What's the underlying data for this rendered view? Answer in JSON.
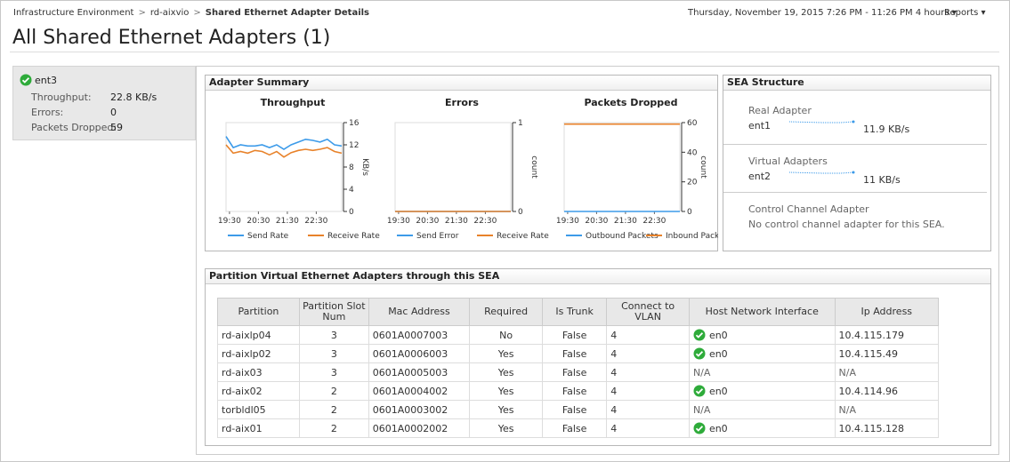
{
  "breadcrumb": [
    "Infrastructure Environment",
    "rd-aixvio",
    "Shared Ethernet Adapter Details"
  ],
  "time_range": {
    "text": "Thursday, November 19, 2015 7:26 PM - 11:26 PM",
    "duration": "4 hours"
  },
  "reports": "Reports",
  "title": "All Shared Ethernet Adapters (1)",
  "adapter": {
    "name": "ent3",
    "stats": [
      {
        "label": "Throughput:",
        "value": "22.8 KB/s"
      },
      {
        "label": "Errors:",
        "value": "0"
      },
      {
        "label": "Packets Dropped:",
        "value": "59"
      }
    ]
  },
  "adapter_summary": {
    "title": "Adapter Summary",
    "charts": [
      {
        "type": "line",
        "title": "Throughput",
        "x_labels": [
          "19:30",
          "20:30",
          "21:30",
          "22:30"
        ],
        "ylim": [
          0,
          16
        ],
        "yticks": [
          0,
          4,
          8,
          12,
          16
        ],
        "y_label": "KB/s",
        "series": [
          {
            "name": "Send Rate",
            "color": "#3d9be9",
            "values": [
              13.5,
              11.5,
              12,
              11.8,
              11.8,
              12,
              11.5,
              12,
              11.2,
              12,
              12.5,
              13,
              12.8,
              12.5,
              13,
              12,
              11.8
            ]
          },
          {
            "name": "Receive Rate",
            "color": "#e8822a",
            "values": [
              12,
              10.5,
              10.8,
              10.5,
              11,
              10.8,
              10.2,
              10.8,
              9.8,
              10.6,
              11,
              11.2,
              11,
              11.2,
              11.5,
              10.8,
              10.5
            ]
          }
        ]
      },
      {
        "type": "line",
        "title": "Errors",
        "x_labels": [
          "19:30",
          "20:30",
          "21:30",
          "22:30"
        ],
        "ylim": [
          0,
          1
        ],
        "yticks": [
          0,
          1
        ],
        "y_label": "count",
        "series": [
          {
            "name": "Send Error",
            "color": "#3d9be9",
            "values": [
              0,
              0,
              0,
              0,
              0,
              0,
              0,
              0,
              0,
              0,
              0,
              0,
              0,
              0,
              0,
              0,
              0
            ]
          },
          {
            "name": "Receive Rate",
            "color": "#e8822a",
            "values": [
              0,
              0,
              0,
              0,
              0,
              0,
              0,
              0,
              0,
              0,
              0,
              0,
              0,
              0,
              0,
              0,
              0
            ]
          }
        ]
      },
      {
        "type": "line",
        "title": "Packets Dropped",
        "x_labels": [
          "19:30",
          "20:30",
          "21:30",
          "22:30"
        ],
        "ylim": [
          0,
          60
        ],
        "yticks": [
          0,
          20,
          40,
          60
        ],
        "y_label": "count",
        "series": [
          {
            "name": "Outbound Packets",
            "color": "#3d9be9",
            "values": [
              0,
              0,
              0,
              0,
              0,
              0,
              0,
              0,
              0,
              0,
              0,
              0,
              0,
              0,
              0,
              0,
              0
            ]
          },
          {
            "name": "Inbound Pack",
            "color": "#e8822a",
            "values": [
              59,
              59,
              59,
              59,
              59,
              59,
              59,
              59,
              59,
              59,
              59,
              59,
              59,
              59,
              59,
              59,
              59
            ]
          }
        ]
      }
    ]
  },
  "sea_structure": {
    "title": "SEA Structure",
    "real": {
      "label": "Real Adapter",
      "name": "ent1",
      "value": "11.9 KB/s"
    },
    "virtual": {
      "label": "Virtual Adapters",
      "name": "ent2",
      "value": "11 KB/s"
    },
    "control": {
      "label": "Control Channel Adapter",
      "text": "No control channel adapter for this SEA."
    }
  },
  "partitions": {
    "title": "Partition Virtual Ethernet Adapters through this SEA",
    "columns": [
      "Partition",
      "Partition Slot Num",
      "Mac Address",
      "Required",
      "Is Trunk",
      "Connect to VLAN",
      "Host Network Interface",
      "Ip Address"
    ],
    "rows": [
      [
        "rd-aixlp04",
        "3",
        "0601A0007003",
        "No",
        "False",
        "4",
        {
          "text": "en0",
          "icon": "ok"
        },
        "10.4.115.179"
      ],
      [
        "rd-aixlp02",
        "3",
        "0601A0006003",
        "Yes",
        "False",
        "4",
        {
          "text": "en0",
          "icon": "ok"
        },
        "10.4.115.49"
      ],
      [
        "rd-aix03",
        "3",
        "0601A0005003",
        "Yes",
        "False",
        "4",
        "N/A",
        "N/A"
      ],
      [
        "rd-aix02",
        "2",
        "0601A0004002",
        "Yes",
        "False",
        "4",
        {
          "text": "en0",
          "icon": "ok"
        },
        "10.4.114.96"
      ],
      [
        "torbldl05",
        "2",
        "0601A0003002",
        "Yes",
        "False",
        "4",
        "N/A",
        "N/A"
      ],
      [
        "rd-aix01",
        "2",
        "0601A0002002",
        "Yes",
        "False",
        "4",
        {
          "text": "en0",
          "icon": "ok"
        },
        "10.4.115.128"
      ]
    ]
  }
}
